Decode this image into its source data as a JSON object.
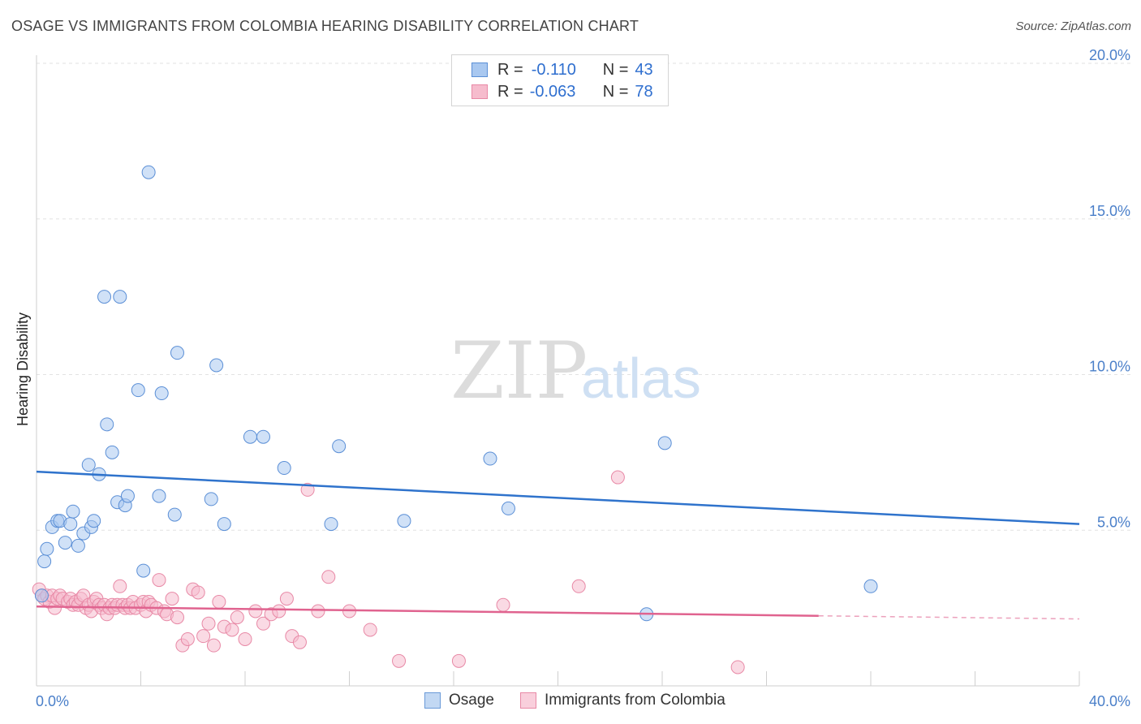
{
  "title": "OSAGE VS IMMIGRANTS FROM COLOMBIA HEARING DISABILITY CORRELATION CHART",
  "source": "Source: ZipAtlas.com",
  "watermark": {
    "zip": "ZIP",
    "atlas": "atlas"
  },
  "stats": {
    "osage": {
      "r_label": "R =",
      "r_value": "-0.110",
      "n_label": "N =",
      "n_value": "43"
    },
    "colombia": {
      "r_label": "R =",
      "r_value": "-0.063",
      "n_label": "N =",
      "n_value": "78"
    }
  },
  "legend": {
    "osage": "Osage",
    "colombia": "Immigrants from Colombia"
  },
  "colors": {
    "osage_fill": "#a9c8f0",
    "osage_stroke": "#5b8fd6",
    "osage_line": "#2f73cc",
    "colombia_fill": "#f6bccd",
    "colombia_stroke": "#e889a6",
    "colombia_line": "#e0638f"
  },
  "chart_data": {
    "type": "scatter",
    "ylabel": "Hearing Disability",
    "xlim": [
      0,
      40
    ],
    "ylim": [
      0,
      20
    ],
    "x_tick_labels": {
      "left": "0.0%",
      "right": "40.0%"
    },
    "y_ticks": [
      {
        "value": 5,
        "label": "5.0%"
      },
      {
        "value": 10,
        "label": "10.0%"
      },
      {
        "value": 15,
        "label": "15.0%"
      },
      {
        "value": 20,
        "label": "20.0%"
      }
    ],
    "series": [
      {
        "name": "Osage",
        "points": [
          [
            0.3,
            4.0
          ],
          [
            0.4,
            4.4
          ],
          [
            0.6,
            5.1
          ],
          [
            0.8,
            5.3
          ],
          [
            0.9,
            5.3
          ],
          [
            1.1,
            4.6
          ],
          [
            1.3,
            5.2
          ],
          [
            1.4,
            5.6
          ],
          [
            1.6,
            4.5
          ],
          [
            1.8,
            4.9
          ],
          [
            2.0,
            7.1
          ],
          [
            2.1,
            5.1
          ],
          [
            2.2,
            5.3
          ],
          [
            2.4,
            6.8
          ],
          [
            2.6,
            12.5
          ],
          [
            2.7,
            8.4
          ],
          [
            2.9,
            7.5
          ],
          [
            3.1,
            5.9
          ],
          [
            3.2,
            12.5
          ],
          [
            3.4,
            5.8
          ],
          [
            3.5,
            6.1
          ],
          [
            3.9,
            9.5
          ],
          [
            4.1,
            3.7
          ],
          [
            4.3,
            16.5
          ],
          [
            4.7,
            6.1
          ],
          [
            4.8,
            9.4
          ],
          [
            5.3,
            5.5
          ],
          [
            5.4,
            10.7
          ],
          [
            6.7,
            6.0
          ],
          [
            6.9,
            10.3
          ],
          [
            7.2,
            5.2
          ],
          [
            8.2,
            8.0
          ],
          [
            8.7,
            8.0
          ],
          [
            9.5,
            7.0
          ],
          [
            11.3,
            5.2
          ],
          [
            11.6,
            7.7
          ],
          [
            14.1,
            5.3
          ],
          [
            17.4,
            7.3
          ],
          [
            18.1,
            5.7
          ],
          [
            23.4,
            2.3
          ],
          [
            24.1,
            7.8
          ],
          [
            32.0,
            3.2
          ],
          [
            0.2,
            2.9
          ]
        ],
        "trend": {
          "x": [
            0,
            40
          ],
          "y": [
            6.88,
            5.2
          ]
        }
      },
      {
        "name": "Immigrants from Colombia",
        "points": [
          [
            0.1,
            3.1
          ],
          [
            0.2,
            2.9
          ],
          [
            0.3,
            2.8
          ],
          [
            0.4,
            2.9
          ],
          [
            0.5,
            2.7
          ],
          [
            0.6,
            2.9
          ],
          [
            0.7,
            2.5
          ],
          [
            0.8,
            2.8
          ],
          [
            0.9,
            2.9
          ],
          [
            1.0,
            2.8
          ],
          [
            1.2,
            2.7
          ],
          [
            1.3,
            2.8
          ],
          [
            1.4,
            2.6
          ],
          [
            1.5,
            2.7
          ],
          [
            1.6,
            2.6
          ],
          [
            1.7,
            2.8
          ],
          [
            1.8,
            2.9
          ],
          [
            1.9,
            2.5
          ],
          [
            2.0,
            2.6
          ],
          [
            2.1,
            2.4
          ],
          [
            2.2,
            2.7
          ],
          [
            2.3,
            2.8
          ],
          [
            2.4,
            2.6
          ],
          [
            2.5,
            2.5
          ],
          [
            2.6,
            2.6
          ],
          [
            2.7,
            2.3
          ],
          [
            2.8,
            2.5
          ],
          [
            2.9,
            2.6
          ],
          [
            3.0,
            2.5
          ],
          [
            3.1,
            2.6
          ],
          [
            3.2,
            3.2
          ],
          [
            3.3,
            2.6
          ],
          [
            3.4,
            2.5
          ],
          [
            3.5,
            2.6
          ],
          [
            3.6,
            2.5
          ],
          [
            3.7,
            2.7
          ],
          [
            3.8,
            2.5
          ],
          [
            4.0,
            2.6
          ],
          [
            4.1,
            2.7
          ],
          [
            4.2,
            2.4
          ],
          [
            4.3,
            2.7
          ],
          [
            4.4,
            2.6
          ],
          [
            4.6,
            2.5
          ],
          [
            4.7,
            3.4
          ],
          [
            4.9,
            2.4
          ],
          [
            5.0,
            2.3
          ],
          [
            5.2,
            2.8
          ],
          [
            5.4,
            2.2
          ],
          [
            5.6,
            1.3
          ],
          [
            5.8,
            1.5
          ],
          [
            6.0,
            3.1
          ],
          [
            6.2,
            3.0
          ],
          [
            6.4,
            1.6
          ],
          [
            6.6,
            2.0
          ],
          [
            6.8,
            1.3
          ],
          [
            7.0,
            2.7
          ],
          [
            7.2,
            1.9
          ],
          [
            7.5,
            1.8
          ],
          [
            7.7,
            2.2
          ],
          [
            8.0,
            1.5
          ],
          [
            8.4,
            2.4
          ],
          [
            8.7,
            2.0
          ],
          [
            9.0,
            2.3
          ],
          [
            9.3,
            2.4
          ],
          [
            9.6,
            2.8
          ],
          [
            9.8,
            1.6
          ],
          [
            10.1,
            1.4
          ],
          [
            10.4,
            6.3
          ],
          [
            10.8,
            2.4
          ],
          [
            11.2,
            3.5
          ],
          [
            12.0,
            2.4
          ],
          [
            12.8,
            1.8
          ],
          [
            13.9,
            0.8
          ],
          [
            16.2,
            0.8
          ],
          [
            17.9,
            2.6
          ],
          [
            20.8,
            3.2
          ],
          [
            22.3,
            6.7
          ],
          [
            26.9,
            0.6
          ]
        ],
        "trend": {
          "x": [
            0,
            40
          ],
          "y": [
            2.55,
            2.15
          ],
          "solid_until_x": 30.0
        }
      }
    ]
  }
}
